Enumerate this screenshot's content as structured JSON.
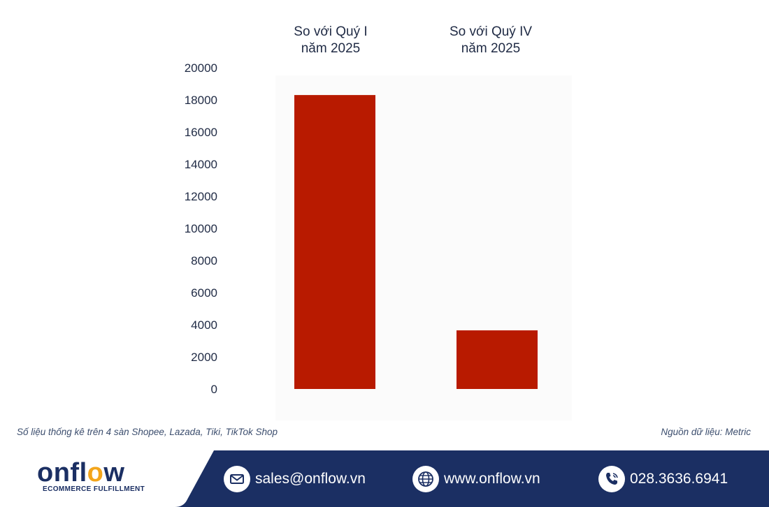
{
  "chart_data": {
    "type": "bar",
    "categories": [
      "So với Quý I năm 2025",
      "So với Quý IV năm 2025"
    ],
    "category_lines": [
      [
        "So với Quý I",
        "năm 2025"
      ],
      [
        "So với Quý IV",
        "năm 2025"
      ]
    ],
    "values": [
      18300,
      3650
    ],
    "yticks": [
      0,
      2000,
      4000,
      6000,
      8000,
      10000,
      12000,
      14000,
      16000,
      18000,
      20000
    ],
    "ylim": [
      0,
      20000
    ],
    "bar_color": "#b81a00",
    "grid": false,
    "legend": "none",
    "title": "",
    "xlabel": "",
    "ylabel": ""
  },
  "notes": {
    "left": "Số liệu thống kê trên 4 sàn Shopee, Lazada, Tiki, TikTok Shop",
    "right": "Nguồn dữ liệu: Metric"
  },
  "footer": {
    "logo_pre": "onfl",
    "logo_hl": "o",
    "logo_post": "w",
    "logo_sub": "ECOMMERCE FULFILLMENT",
    "email": "sales@onflow.vn",
    "website": "www.onflow.vn",
    "phone": "028.3636.6941",
    "icons": [
      "email-icon",
      "globe-icon",
      "phone-icon"
    ],
    "colors": {
      "background": "#1b2f63",
      "accent": "#f3a51b"
    }
  }
}
